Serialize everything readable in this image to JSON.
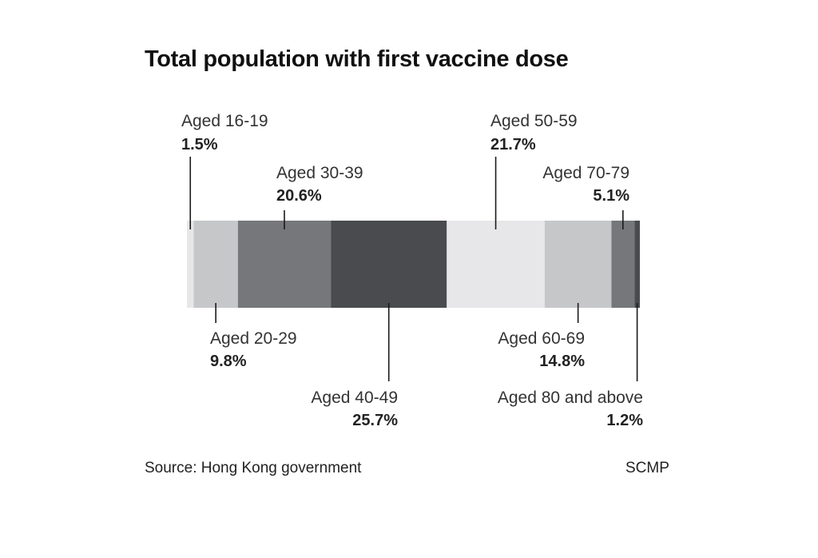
{
  "chart_data": {
    "type": "bar",
    "title": "Total population with first vaccine dose",
    "stacked": true,
    "orientation": "horizontal",
    "categories": [
      "Aged 16-19",
      "Aged 20-29",
      "Aged 30-39",
      "Aged 40-49",
      "Aged 50-59",
      "Aged 60-69",
      "Aged 70-79",
      "Aged 80 and above"
    ],
    "values": [
      1.5,
      9.8,
      20.6,
      25.7,
      21.7,
      14.8,
      5.1,
      1.2
    ],
    "value_labels": [
      "1.5%",
      "9.8%",
      "20.6%",
      "25.7%",
      "21.7%",
      "14.8%",
      "5.1%",
      "1.2%"
    ],
    "colors": [
      "#e7e7e9",
      "#c6c7c9",
      "#76777a",
      "#4a4b4e",
      "#e7e7e9",
      "#c6c7c9",
      "#76777a",
      "#4a4b4e"
    ],
    "label_positions": [
      "top",
      "bottom",
      "top",
      "bottom",
      "top",
      "bottom",
      "top",
      "bottom"
    ]
  },
  "footer": {
    "source": "Source: Hong Kong government",
    "credit": "SCMP"
  }
}
